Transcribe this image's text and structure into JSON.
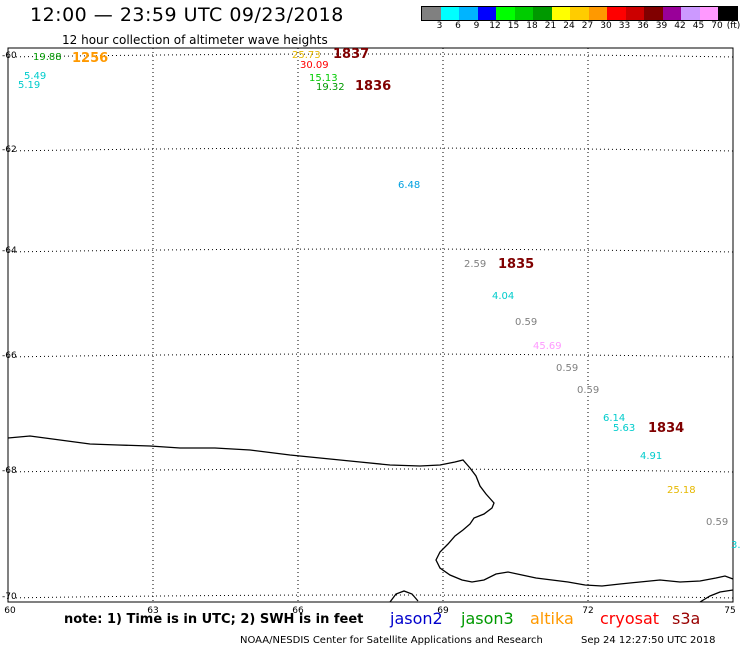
{
  "header": {
    "title": "12:00 — 23:59 UTC 09/23/2018",
    "subtitle": "12 hour collection of altimeter wave heights"
  },
  "legend": {
    "colors": [
      "#808080",
      "#00ffff",
      "#00b4ff",
      "#0000ff",
      "#00ff00",
      "#00cc00",
      "#009900",
      "#ffff00",
      "#ffcc00",
      "#ff9900",
      "#ff0000",
      "#cc0000",
      "#800000",
      "#990099",
      "#cc99ff",
      "#ff99ff",
      "#000000"
    ],
    "labels": [
      "3",
      "6",
      "9",
      "12",
      "15",
      "18",
      "21",
      "24",
      "27",
      "30",
      "33",
      "36",
      "39",
      "42",
      "45",
      "70",
      "(ft)"
    ]
  },
  "axes": {
    "lat_labels": [
      "-60",
      "-62",
      "-64",
      "-66",
      "-68",
      "-70"
    ],
    "lon_labels": [
      "60",
      "63",
      "66",
      "69",
      "72",
      "75"
    ]
  },
  "observations": [
    {
      "text": "19.88",
      "color": "#009900"
    },
    {
      "text": "5.49",
      "color": "#00cccc"
    },
    {
      "text": "5.19",
      "color": "#00cccc"
    },
    {
      "text": "25.73",
      "color": "#e6b800"
    },
    {
      "text": "30.09",
      "color": "#ff0000"
    },
    {
      "text": "15.13",
      "color": "#00cc00"
    },
    {
      "text": "19.32",
      "color": "#009900"
    },
    {
      "text": "6.48",
      "color": "#00a0e0"
    },
    {
      "text": "2.59",
      "color": "#808080"
    },
    {
      "text": "4.04",
      "color": "#00cccc"
    },
    {
      "text": "0.59",
      "color": "#808080"
    },
    {
      "text": "45.69",
      "color": "#ff99ff"
    },
    {
      "text": "0.59",
      "color": "#808080"
    },
    {
      "text": "0.59",
      "color": "#808080"
    },
    {
      "text": "6.14",
      "color": "#00cccc"
    },
    {
      "text": "5.63",
      "color": "#00cccc"
    },
    {
      "text": "4.91",
      "color": "#00cccc"
    },
    {
      "text": "25.18",
      "color": "#e6b800"
    },
    {
      "text": "0.59",
      "color": "#808080"
    },
    {
      "text": "3.",
      "color": "#00cccc"
    }
  ],
  "pass_times": [
    {
      "text": "1256",
      "color": "#ff9900"
    },
    {
      "text": "1837",
      "color": "#800000"
    },
    {
      "text": "1836",
      "color": "#800000"
    },
    {
      "text": "1835",
      "color": "#800000"
    },
    {
      "text": "1834",
      "color": "#800000"
    }
  ],
  "note": "note: 1) Time is in UTC; 2) SWH is in feet",
  "satellites": [
    {
      "name": "jason2",
      "color": "#0000cc"
    },
    {
      "name": "jason3",
      "color": "#009900"
    },
    {
      "name": "altika",
      "color": "#ff9900"
    },
    {
      "name": "cryosat",
      "color": "#ff0000"
    },
    {
      "name": "s3a",
      "color": "#990000"
    }
  ],
  "footer": {
    "source": "NOAA/NESDIS Center for Satellite Applications and Research",
    "timestamp": "Sep 24 12:27:50 UTC 2018"
  }
}
